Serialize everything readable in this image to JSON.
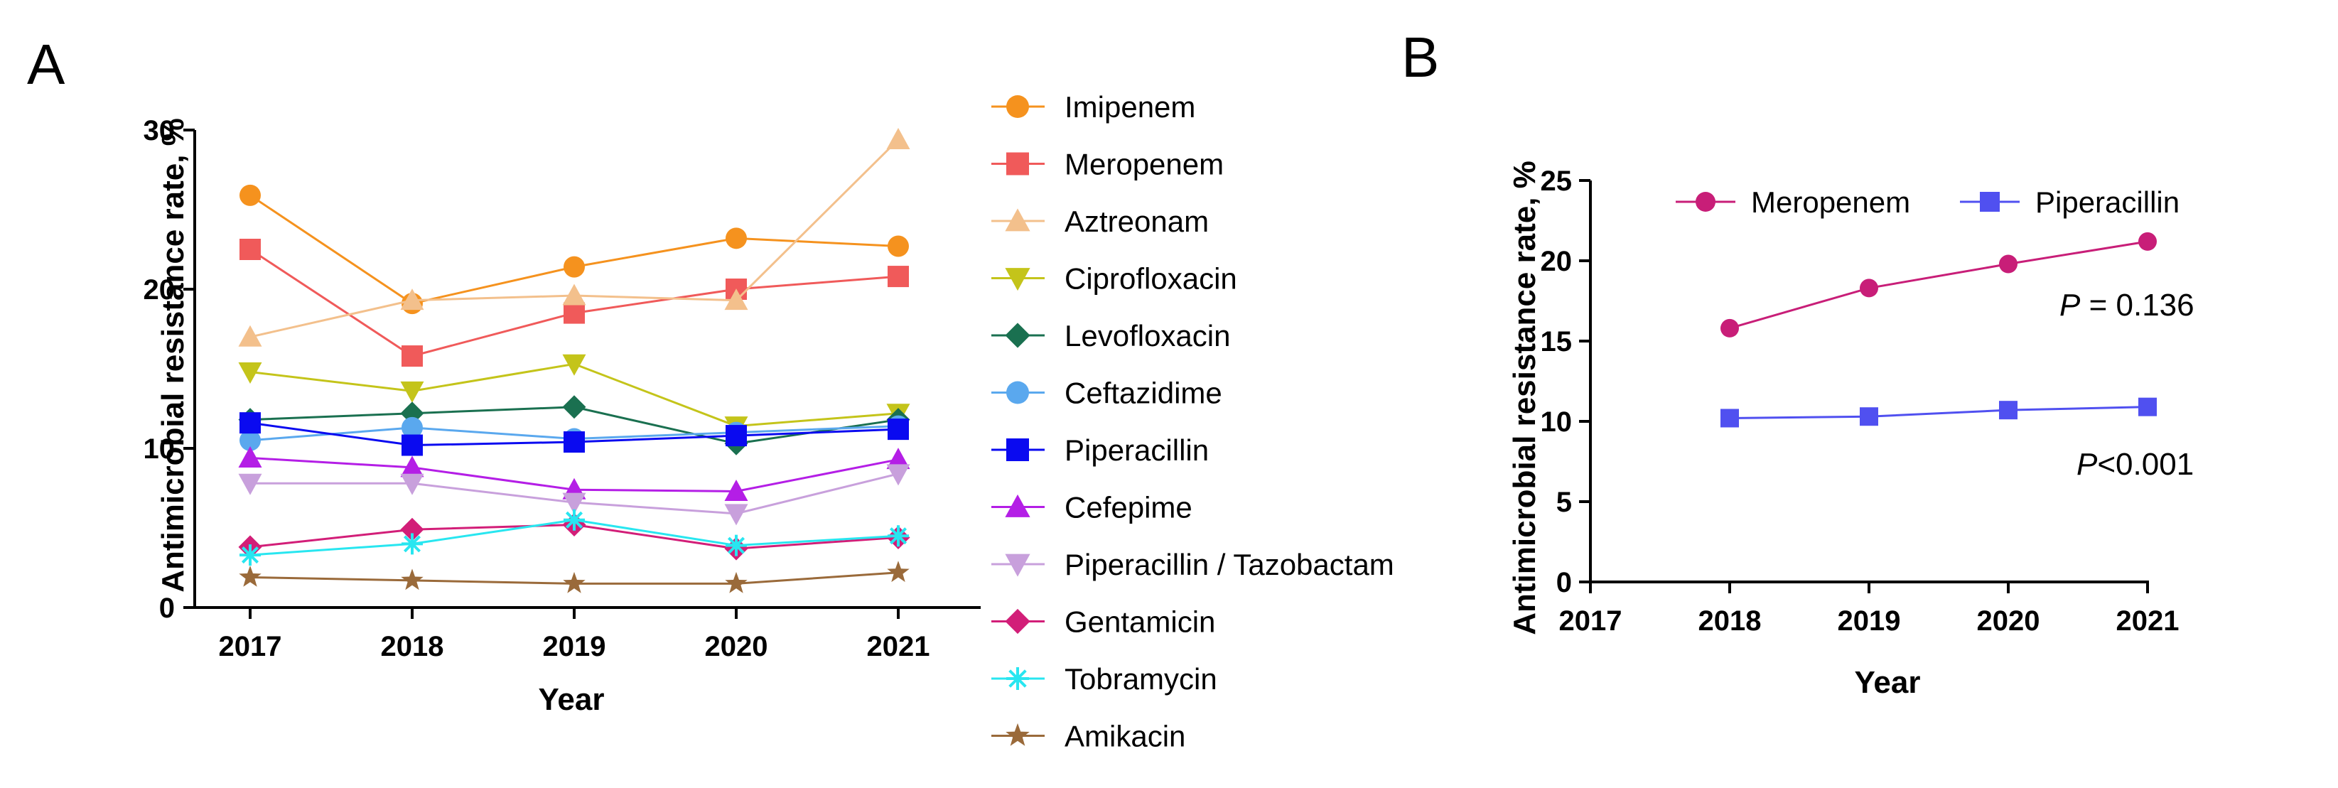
{
  "chart_data": [
    {
      "panel": "A",
      "type": "line",
      "xlabel": "Year",
      "ylabel": "Antimicrobial resistance rate, %",
      "ylim": [
        0,
        30
      ],
      "yticks": [
        0,
        10,
        20,
        30
      ],
      "x": [
        "2017",
        "2018",
        "2019",
        "2020",
        "2021"
      ],
      "legend_position": "right",
      "series": [
        {
          "name": "Imipenem",
          "color": "#f5921e",
          "marker": "circle",
          "values": [
            25.9,
            19.1,
            21.4,
            23.2,
            22.7
          ]
        },
        {
          "name": "Meropenem",
          "color": "#f05a5a",
          "marker": "square",
          "values": [
            22.5,
            15.8,
            18.5,
            20.0,
            20.8
          ]
        },
        {
          "name": "Aztreonam",
          "color": "#f3c08c",
          "marker": "triangle-up",
          "values": [
            17.0,
            19.3,
            19.6,
            19.3,
            29.4
          ]
        },
        {
          "name": "Ciprofloxacin",
          "color": "#c4c41a",
          "marker": "triangle-down",
          "values": [
            14.8,
            13.6,
            15.3,
            11.4,
            12.2
          ]
        },
        {
          "name": "Levofloxacin",
          "color": "#1a7050",
          "marker": "diamond",
          "values": [
            11.8,
            12.2,
            12.6,
            10.3,
            11.8
          ]
        },
        {
          "name": "Ceftazidime",
          "color": "#5aa8ee",
          "marker": "circle",
          "values": [
            10.5,
            11.3,
            10.6,
            11.0,
            11.4
          ]
        },
        {
          "name": "Piperacillin",
          "color": "#0a0af0",
          "marker": "square",
          "values": [
            11.6,
            10.2,
            10.4,
            10.8,
            11.2
          ]
        },
        {
          "name": "Cefepime",
          "color": "#b41ee6",
          "marker": "triangle-up",
          "values": [
            9.4,
            8.8,
            7.4,
            7.3,
            9.3
          ]
        },
        {
          "name": "Piperacillin / Tazobactam",
          "color": "#c8a0dc",
          "marker": "triangle-down",
          "values": [
            7.8,
            7.8,
            6.6,
            5.9,
            8.4
          ]
        },
        {
          "name": "Gentamicin",
          "color": "#d21e78",
          "marker": "diamond",
          "values": [
            3.8,
            4.9,
            5.2,
            3.7,
            4.4
          ]
        },
        {
          "name": "Tobramycin",
          "color": "#28e6f0",
          "marker": "asterisk",
          "values": [
            3.3,
            4.0,
            5.5,
            3.9,
            4.5
          ]
        },
        {
          "name": "Amikacin",
          "color": "#9a6a3a",
          "marker": "star",
          "values": [
            1.9,
            1.7,
            1.5,
            1.5,
            2.2
          ]
        }
      ]
    },
    {
      "panel": "B",
      "type": "line",
      "xlabel": "Year",
      "ylabel": "Antimicrobial resistance rate, %",
      "ylim": [
        0,
        25
      ],
      "yticks": [
        0,
        5,
        10,
        15,
        20,
        25
      ],
      "xticks": [
        "2017",
        "2018",
        "2019",
        "2020",
        "2021"
      ],
      "legend_position": "top",
      "series": [
        {
          "name": "Meropenem",
          "color": "#c81e78",
          "marker": "circle",
          "x": [
            "2018",
            "2019",
            "2020",
            "2021"
          ],
          "values": [
            15.8,
            18.3,
            19.8,
            21.2
          ]
        },
        {
          "name": "Piperacillin",
          "color": "#5050f0",
          "marker": "square",
          "x": [
            "2018",
            "2019",
            "2020",
            "2021"
          ],
          "values": [
            10.2,
            10.3,
            10.7,
            10.9
          ]
        }
      ],
      "annotations": [
        {
          "p": "P",
          "text": " = 0.136"
        },
        {
          "p": "P",
          "text": "<0.001"
        }
      ]
    }
  ]
}
